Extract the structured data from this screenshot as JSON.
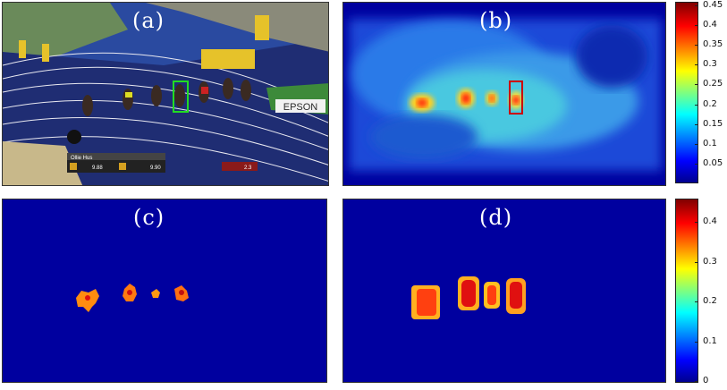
{
  "panels": {
    "a": {
      "label": "(a)"
    },
    "b": {
      "label": "(b)"
    },
    "c": {
      "label": "(c)"
    },
    "d": {
      "label": "(d)"
    }
  },
  "photo": {
    "sponsor_board": "EPSON",
    "overlay_name": "Ollie Hus",
    "overlay_time_1": "9.88",
    "overlay_time_2": "9.90",
    "overlay_right": "2.3"
  },
  "colorbar_top": {
    "ticks": [
      "0.45",
      "0.4",
      "0.35",
      "0.3",
      "0.25",
      "0.2",
      "0.15",
      "0.1",
      "0.05"
    ]
  },
  "colorbar_bottom": {
    "ticks": [
      "0.4",
      "0.3",
      "0.2",
      "0.1",
      "0"
    ]
  },
  "colors": {
    "heatmap_bg": "#00009f",
    "box_green": "#22dd22",
    "box_red": "#cc0000"
  }
}
